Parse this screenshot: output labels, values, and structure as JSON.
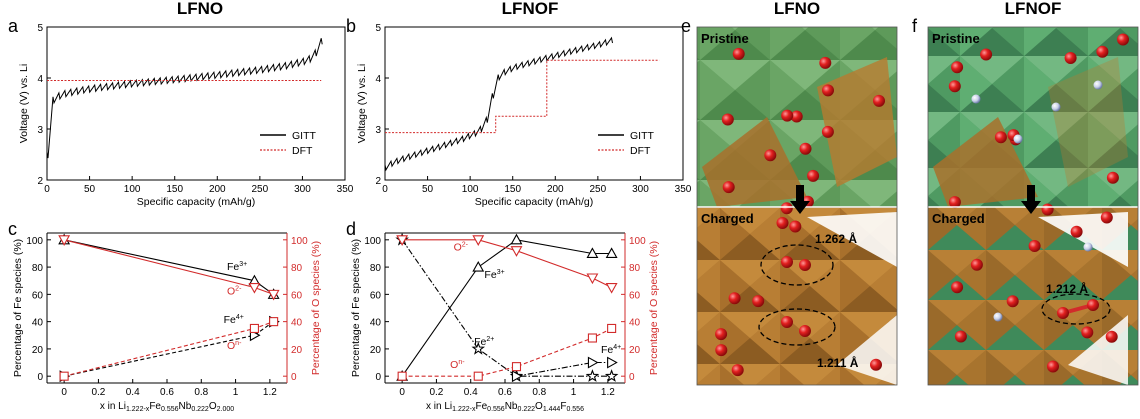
{
  "colors": {
    "black": "#000000",
    "red": "#d22b2b",
    "fe_text": "#000000",
    "o_text": "#d22b2b"
  },
  "panels": {
    "a": {
      "letter": "a",
      "title": "LFNO"
    },
    "b": {
      "letter": "b",
      "title": "LFNOF"
    },
    "c": {
      "letter": "c"
    },
    "d": {
      "letter": "d"
    },
    "e": {
      "letter": "e",
      "title": "LFNO",
      "top_label": "Pristine",
      "bottom_label": "Charged",
      "bond_1": "1.262 Å",
      "bond_2": "1.211 Å"
    },
    "f": {
      "letter": "f",
      "title": "LFNOF",
      "top_label": "Pristine",
      "bottom_label": "Charged",
      "bond_1": "1.212 Å"
    }
  },
  "chart_data": [
    {
      "id": "a",
      "type": "line",
      "xlabel": "Specific capacity (mAh/g)",
      "ylabel": "Voltage (V) vs. Li",
      "xlim": [
        0,
        350
      ],
      "ylim": [
        2,
        5
      ],
      "xticks": [
        0,
        50,
        100,
        150,
        200,
        250,
        300,
        350
      ],
      "yticks": [
        2,
        3,
        4,
        5
      ],
      "legend": {
        "position": "lower-right",
        "entries": [
          "GITT",
          "DFT"
        ]
      },
      "series": [
        {
          "name": "GITT",
          "style": "solid-black",
          "x": [
            0,
            2,
            5,
            10,
            20,
            40,
            60,
            100,
            150,
            200,
            250,
            280,
            300,
            310,
            315,
            320,
            322
          ],
          "y": [
            2.55,
            3.5,
            3.6,
            3.68,
            3.75,
            3.82,
            3.87,
            3.95,
            4.03,
            4.12,
            4.22,
            4.3,
            4.38,
            4.45,
            4.55,
            4.68,
            4.78
          ],
          "relax_step": 7,
          "relax_drop": 0.12
        },
        {
          "name": "DFT",
          "style": "dotted-red",
          "x": [
            0,
            322
          ],
          "y": [
            3.95,
            3.95
          ]
        }
      ]
    },
    {
      "id": "b",
      "type": "line",
      "xlabel": "Specific capacity (mAh/g)",
      "ylabel": "Voltage (V) vs. Li",
      "xlim": [
        0,
        350
      ],
      "ylim": [
        2,
        5
      ],
      "xticks": [
        0,
        50,
        100,
        150,
        200,
        250,
        300,
        350
      ],
      "yticks": [
        2,
        3,
        4,
        5
      ],
      "legend": {
        "position": "lower-right",
        "entries": [
          "GITT",
          "DFT"
        ]
      },
      "series": [
        {
          "name": "GITT",
          "style": "solid-black",
          "x": [
            0,
            10,
            30,
            60,
            90,
            110,
            120,
            125,
            128,
            132,
            138,
            150,
            180,
            220,
            250,
            265,
            268
          ],
          "y": [
            2.3,
            2.4,
            2.52,
            2.68,
            2.85,
            3.0,
            3.25,
            3.6,
            3.9,
            4.05,
            4.15,
            4.25,
            4.4,
            4.58,
            4.7,
            4.78,
            4.8
          ],
          "relax_step": 7,
          "relax_drop": 0.1
        },
        {
          "name": "DFT",
          "style": "dotted-red",
          "x": [
            0,
            130,
            130,
            190,
            190,
            322
          ],
          "y": [
            2.93,
            2.93,
            3.25,
            3.25,
            4.35,
            4.35
          ]
        }
      ]
    },
    {
      "id": "c",
      "type": "line",
      "xlabel_main": "x in Li",
      "xlabel_formula": [
        [
          "1.222-x",
          "sub"
        ],
        [
          "Fe",
          ""
        ],
        [
          "0.556",
          "sub"
        ],
        [
          "Nb",
          ""
        ],
        [
          "0.222",
          "sub"
        ],
        [
          "O",
          ""
        ],
        [
          "2.000",
          "sub"
        ]
      ],
      "ylabel": "Percentage of Fe species (%)",
      "y2label": "Percentage of O species (%)",
      "xlim": [
        -0.1,
        1.3
      ],
      "ylim": [
        -5,
        105
      ],
      "y2lim": [
        -5,
        105
      ],
      "xticks": [
        0.0,
        0.2,
        0.4,
        0.6,
        0.8,
        1.0,
        1.2
      ],
      "yticks": [
        0,
        20,
        40,
        60,
        80,
        100
      ],
      "series": [
        {
          "name": "Fe3+",
          "axis": "left",
          "color": "black",
          "line": "solid",
          "marker": "triangle-up",
          "x": [
            0,
            1.11,
            1.222
          ],
          "y": [
            100,
            70,
            60
          ]
        },
        {
          "name": "Fe4+",
          "axis": "left",
          "color": "black",
          "line": "dashed",
          "marker": "triangle-right",
          "x": [
            0,
            1.11,
            1.222
          ],
          "y": [
            0,
            30,
            40
          ]
        },
        {
          "name": "O2-",
          "axis": "right",
          "color": "red",
          "line": "solid",
          "marker": "triangle-down",
          "x": [
            0,
            1.11,
            1.222
          ],
          "y": [
            100,
            65,
            60
          ]
        },
        {
          "name": "On-",
          "axis": "right",
          "color": "red",
          "line": "dashed",
          "marker": "square",
          "x": [
            0,
            1.11,
            1.222
          ],
          "y": [
            0,
            35,
            40
          ]
        }
      ],
      "annotations": [
        {
          "text": "Fe",
          "sup": "3+",
          "color": "black",
          "x": 0.95,
          "y": 78
        },
        {
          "text": "O",
          "sup": "2-",
          "color": "red",
          "x": 0.95,
          "y": 60
        },
        {
          "text": "Fe",
          "sup": "4+",
          "color": "black",
          "x": 0.93,
          "y": 39
        },
        {
          "text": "O",
          "sup": "n-",
          "color": "red",
          "x": 0.95,
          "y": 20
        }
      ]
    },
    {
      "id": "d",
      "type": "line",
      "xlabel_main": "x in Li",
      "xlabel_formula": [
        [
          "1.222-x",
          "sub"
        ],
        [
          "Fe",
          ""
        ],
        [
          "0.556",
          "sub"
        ],
        [
          "Nb",
          ""
        ],
        [
          "0.222",
          "sub"
        ],
        [
          "O",
          ""
        ],
        [
          "1.444",
          "sub"
        ],
        [
          "F",
          ""
        ],
        [
          "0.556",
          "sub"
        ]
      ],
      "ylabel": "Percentage of Fe species (%)",
      "y2label": "Percentage of O species (%)",
      "xlim": [
        -0.1,
        1.3
      ],
      "ylim": [
        -5,
        105
      ],
      "y2lim": [
        -5,
        105
      ],
      "xticks": [
        0.0,
        0.2,
        0.4,
        0.6,
        0.8,
        1.0,
        1.2
      ],
      "yticks": [
        0,
        20,
        40,
        60,
        80,
        100
      ],
      "series": [
        {
          "name": "Fe3+",
          "axis": "left",
          "color": "black",
          "line": "solid",
          "marker": "triangle-up",
          "x": [
            0,
            0.444,
            0.667,
            1.11,
            1.222
          ],
          "y": [
            0,
            80,
            100,
            90,
            90
          ]
        },
        {
          "name": "Fe2+",
          "axis": "left",
          "color": "black",
          "line": "dashdot",
          "marker": "star",
          "x": [
            0,
            0.444,
            0.667,
            1.11,
            1.222
          ],
          "y": [
            100,
            20,
            0,
            0,
            0
          ]
        },
        {
          "name": "Fe4+",
          "axis": "left",
          "color": "black",
          "line": "dashdot",
          "marker": "triangle-right",
          "x": [
            0.667,
            1.11,
            1.222
          ],
          "y": [
            0,
            10,
            10
          ]
        },
        {
          "name": "O2-",
          "axis": "right",
          "color": "red",
          "line": "solid",
          "marker": "triangle-down",
          "x": [
            0,
            0.444,
            0.667,
            1.11,
            1.222
          ],
          "y": [
            100,
            100,
            92,
            72,
            65
          ]
        },
        {
          "name": "On-",
          "axis": "right",
          "color": "red",
          "line": "dashed",
          "marker": "square",
          "x": [
            0,
            0.444,
            0.667,
            1.11,
            1.222
          ],
          "y": [
            0,
            0,
            7,
            28,
            35
          ]
        }
      ],
      "annotations": [
        {
          "text": "O",
          "sup": "2-",
          "color": "red",
          "x": 0.3,
          "y": 92
        },
        {
          "text": "Fe",
          "sup": "3+",
          "color": "black",
          "x": 0.48,
          "y": 72
        },
        {
          "text": "Fe",
          "sup": "2+",
          "color": "black",
          "x": 0.42,
          "y": 23
        },
        {
          "text": "Fe",
          "sup": "4+",
          "color": "black",
          "x": 1.16,
          "y": 17
        },
        {
          "text": "O",
          "sup": "n-",
          "color": "red",
          "x": 0.28,
          "y": 6
        }
      ]
    }
  ]
}
